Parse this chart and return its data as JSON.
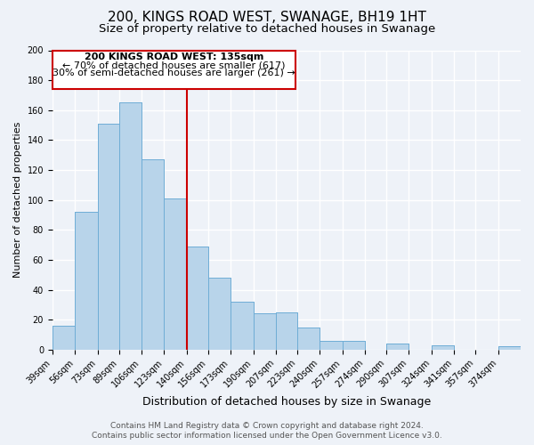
{
  "title": "200, KINGS ROAD WEST, SWANAGE, BH19 1HT",
  "subtitle": "Size of property relative to detached houses in Swanage",
  "xlabel": "Distribution of detached houses by size in Swanage",
  "ylabel": "Number of detached properties",
  "categories": [
    "39sqm",
    "56sqm",
    "73sqm",
    "89sqm",
    "106sqm",
    "123sqm",
    "140sqm",
    "156sqm",
    "173sqm",
    "190sqm",
    "207sqm",
    "223sqm",
    "240sqm",
    "257sqm",
    "274sqm",
    "290sqm",
    "307sqm",
    "324sqm",
    "341sqm",
    "357sqm",
    "374sqm"
  ],
  "values": [
    16,
    92,
    151,
    165,
    127,
    101,
    69,
    48,
    32,
    24,
    25,
    15,
    6,
    6,
    0,
    4,
    0,
    3,
    0,
    0,
    2
  ],
  "bar_color": "#b8d4ea",
  "bar_edge_color": "#6aaad4",
  "bin_edges": [
    39,
    56,
    73,
    89,
    106,
    123,
    140,
    156,
    173,
    190,
    207,
    223,
    240,
    257,
    274,
    290,
    307,
    324,
    341,
    357,
    374,
    391
  ],
  "annotation_title": "200 KINGS ROAD WEST: 135sqm",
  "annotation_line1": "← 70% of detached houses are smaller (617)",
  "annotation_line2": "30% of semi-detached houses are larger (261) →",
  "ylim": [
    0,
    200
  ],
  "yticks": [
    0,
    20,
    40,
    60,
    80,
    100,
    120,
    140,
    160,
    180,
    200
  ],
  "footer_line1": "Contains HM Land Registry data © Crown copyright and database right 2024.",
  "footer_line2": "Contains public sector information licensed under the Open Government Licence v3.0.",
  "background_color": "#eef2f8",
  "grid_color": "#ffffff",
  "annotation_box_color": "#ffffff",
  "annotation_box_edge": "#cc0000",
  "vline_color": "#cc0000",
  "title_fontsize": 11,
  "subtitle_fontsize": 9.5,
  "xlabel_fontsize": 9,
  "ylabel_fontsize": 8,
  "tick_fontsize": 7,
  "annotation_fontsize": 8,
  "footer_fontsize": 6.5
}
